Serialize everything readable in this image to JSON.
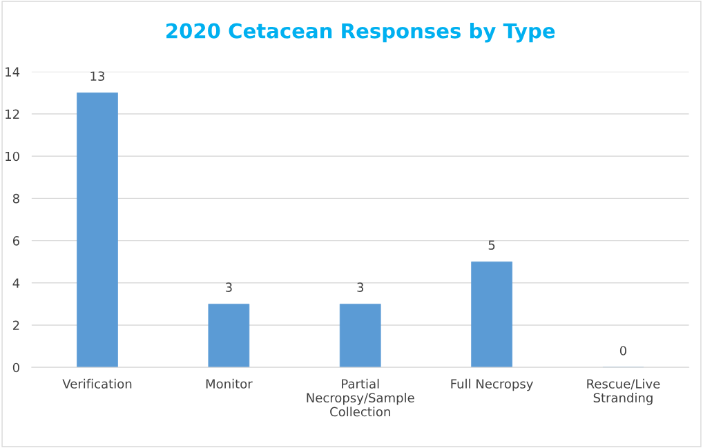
{
  "chart_data": {
    "type": "bar",
    "title": "2020 Cetacean Responses by Type",
    "categories": [
      "Verification",
      "Monitor",
      "Partial\nNecropsy/Sample\nCollection",
      "Full Necropsy",
      "Rescue/Live\nStranding"
    ],
    "values": [
      13,
      3,
      3,
      5,
      0
    ],
    "color": "#5b9bd5",
    "ylim": [
      0,
      14
    ],
    "yticks": [
      0,
      2,
      4,
      6,
      8,
      10,
      12,
      14
    ],
    "grid": "y",
    "data_labels": true
  }
}
